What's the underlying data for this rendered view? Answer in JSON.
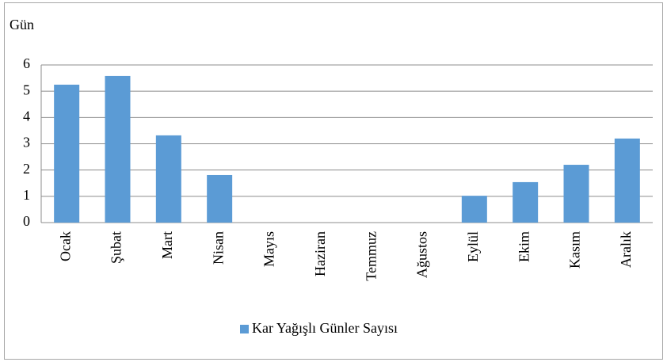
{
  "chart_data": {
    "type": "bar",
    "y_label": "Gün",
    "categories": [
      "Ocak",
      "Şubat",
      "Mart",
      "Nisan",
      "Mayıs",
      "Haziran",
      "Temmuz",
      "Ağustos",
      "Eylül",
      "Ekim",
      "Kasım",
      "Aralık"
    ],
    "series": [
      {
        "name": "Kar Yağışlı Günler Sayısı",
        "color": "#5b9bd5",
        "values": [
          5.25,
          5.58,
          3.32,
          1.81,
          0,
          0,
          0,
          0,
          1.02,
          1.54,
          2.2,
          3.2
        ]
      }
    ],
    "ylim": [
      0,
      6
    ],
    "yticks": [
      0,
      1,
      2,
      3,
      4,
      5,
      6
    ],
    "grid": true,
    "legend": "bottom"
  }
}
